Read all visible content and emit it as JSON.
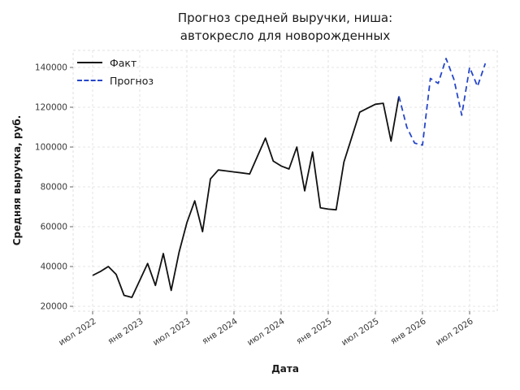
{
  "title": {
    "line1": "Прогноз средней выручки, ниша:",
    "line2": "автокресло для новорожденных"
  },
  "axes": {
    "x_label": "Дата",
    "y_label": "Средняя выручка, руб."
  },
  "legend": [
    {
      "id": "fact",
      "label": "Факт",
      "style": "solid",
      "color": "#111111"
    },
    {
      "id": "forecast",
      "label": "Прогноз",
      "style": "dashed",
      "color": "#2646c9"
    }
  ],
  "colors": {
    "fact_line": "#111111",
    "forecast_line": "#2646c9",
    "grid": "#dcdcdc",
    "frame": "#d8d8d8",
    "tick": "#666666",
    "text": "#1a1a1a"
  },
  "chart_data": {
    "type": "line",
    "title": "Прогноз средней выручки, ниша: автокресло для новорожденных",
    "xlabel": "Дата",
    "ylabel": "Средняя выручка, руб.",
    "x_tick_months": [
      "2022-07",
      "2023-01",
      "2023-07",
      "2024-01",
      "2024-07",
      "2025-01",
      "2025-07",
      "2026-01",
      "2026-07"
    ],
    "x_ticklabels": [
      "июл 2022",
      "янв 2023",
      "июл 2023",
      "янв 2024",
      "июл 2024",
      "янв 2025",
      "июл 2025",
      "янв 2026",
      "июл 2026"
    ],
    "y_ticks": [
      20000,
      40000,
      60000,
      80000,
      100000,
      120000,
      140000
    ],
    "ylim": [
      16000,
      150000
    ],
    "grid": true,
    "legend_position": "upper-left",
    "series": [
      {
        "id": "fact",
        "name": "Факт",
        "style": "solid",
        "color": "#111111",
        "months": [
          "2022-07",
          "2022-08",
          "2022-09",
          "2022-10",
          "2022-11",
          "2022-12",
          "2023-01",
          "2023-02",
          "2023-03",
          "2023-04",
          "2023-05",
          "2023-06",
          "2023-07",
          "2023-08",
          "2023-09",
          "2023-10",
          "2023-11",
          "2023-12",
          "2024-01",
          "2024-02",
          "2024-03",
          "2024-04",
          "2024-05",
          "2024-06",
          "2024-07",
          "2024-08",
          "2024-09",
          "2024-10",
          "2024-11",
          "2024-12",
          "2025-01",
          "2025-02",
          "2025-03",
          "2025-04",
          "2025-05",
          "2025-06",
          "2025-07",
          "2025-08",
          "2025-09",
          "2025-10"
        ],
        "values": [
          35500,
          37500,
          40000,
          36000,
          25500,
          24500,
          33000,
          41500,
          30500,
          46500,
          28000,
          47000,
          62000,
          73000,
          57500,
          84000,
          88500,
          88000,
          87500,
          87000,
          86500,
          95500,
          104500,
          93000,
          90500,
          89000,
          100000,
          78000,
          97500,
          69500,
          68800,
          68500,
          92500,
          105000,
          117500,
          119500,
          121500,
          122000,
          103000,
          125500
        ]
      },
      {
        "id": "forecast",
        "name": "Прогноз",
        "style": "dashed",
        "color": "#2646c9",
        "months": [
          "2025-10",
          "2025-11",
          "2025-12",
          "2026-01",
          "2026-02",
          "2026-03",
          "2026-04",
          "2026-05",
          "2026-06",
          "2026-07",
          "2026-08",
          "2026-09"
        ],
        "values": [
          125500,
          110000,
          102000,
          101000,
          134500,
          132000,
          144500,
          134000,
          116000,
          140000,
          130500,
          142000
        ]
      }
    ]
  }
}
